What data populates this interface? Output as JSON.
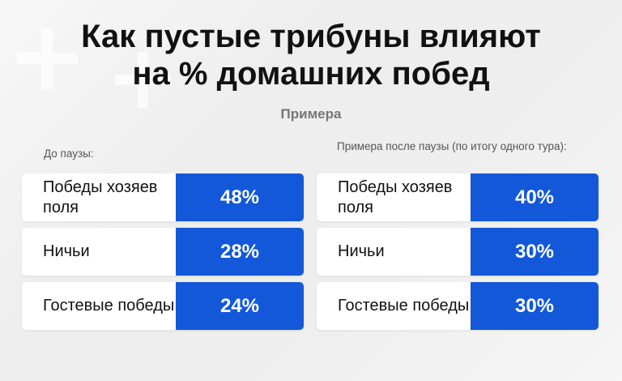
{
  "title_line1": "Как пустые трибуны влияют",
  "title_line2": "на % домашних побед",
  "subtitle": "Примера",
  "chart_data": [
    {
      "type": "table",
      "title": "До паузы:",
      "rows": [
        {
          "label": "Победы хозяев поля",
          "value": 48,
          "display": "48%"
        },
        {
          "label": "Ничьи",
          "value": 28,
          "display": "28%"
        },
        {
          "label": "Гостевые победы",
          "value": 24,
          "display": "24%"
        }
      ]
    },
    {
      "type": "table",
      "title": "Примера после паузы (по итогу одного тура):",
      "rows": [
        {
          "label": "Победы хозяев поля",
          "value": 40,
          "display": "40%"
        },
        {
          "label": "Ничьи",
          "value": 30,
          "display": "30%"
        },
        {
          "label": "Гостевые победы",
          "value": 30,
          "display": "30%"
        }
      ]
    }
  ],
  "colors": {
    "accent": "#1358d8",
    "background": "#eeeeee",
    "card": "#ffffff"
  }
}
